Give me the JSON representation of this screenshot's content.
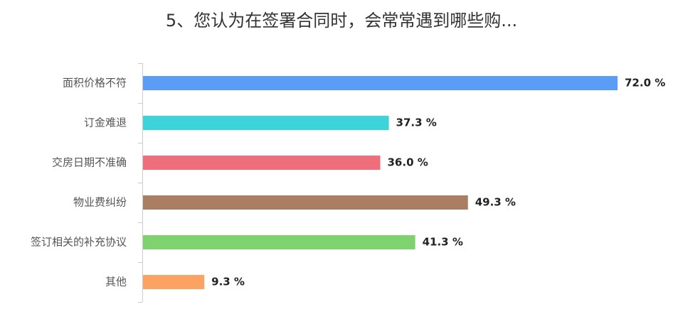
{
  "chart_data": {
    "type": "bar",
    "orientation": "horizontal",
    "title": "5、您认为在签署合同时，会常常遇到哪些购...",
    "categories": [
      "面积价格不符",
      "订金难退",
      "交房日期不准确",
      "物业费纠纷",
      "签订相关的补充协议",
      "其他"
    ],
    "values": [
      72.0,
      37.3,
      36.0,
      49.3,
      41.3,
      9.3
    ],
    "value_labels": [
      "72.0 %",
      "37.3 %",
      "36.0 %",
      "49.3 %",
      "41.3 %",
      "9.3 %"
    ],
    "colors": [
      "#5b9cf6",
      "#3cd3db",
      "#f06d7b",
      "#a97e62",
      "#7ed36f",
      "#fca263"
    ]
  }
}
